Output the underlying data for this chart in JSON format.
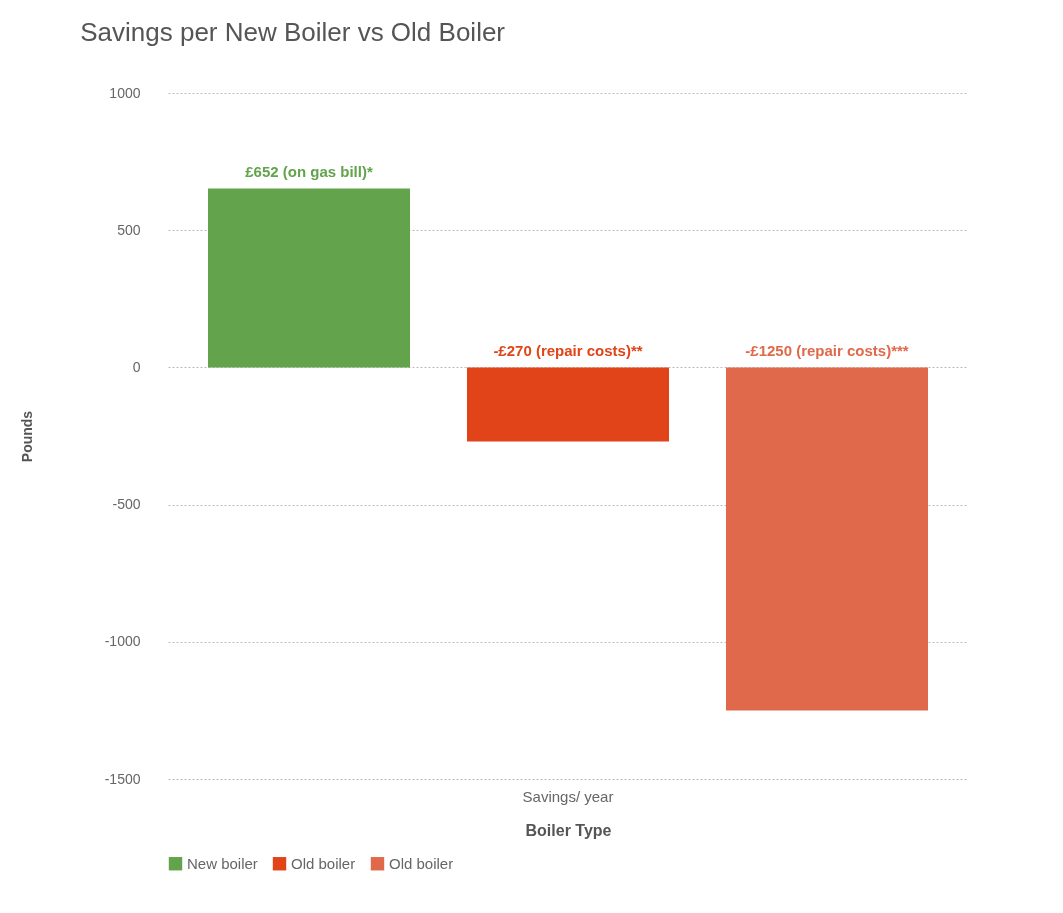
{
  "chart_data": {
    "type": "bar",
    "title": "Savings per New Boiler vs Old Boiler",
    "xlabel": "Boiler Type",
    "ylabel": "Pounds",
    "categories": [
      "Savings/ year"
    ],
    "series": [
      {
        "name": "New boiler",
        "color": "#63a34b",
        "values": [
          652
        ],
        "value_labels": [
          "£652 (on gas bill)*"
        ]
      },
      {
        "name": "Old boiler",
        "color": "#e04418",
        "values": [
          -270
        ],
        "value_labels": [
          "-£270 (repair costs)**"
        ]
      },
      {
        "name": "Old boiler",
        "color": "#e0694b",
        "values": [
          -1250
        ],
        "value_labels": [
          "-£1250 (repair costs)***"
        ]
      }
    ],
    "ylim": [
      -1500,
      1000
    ],
    "yticks": [
      -1500,
      -1000,
      -500,
      0,
      500,
      1000
    ],
    "grid": "y",
    "legend": "bottom"
  }
}
